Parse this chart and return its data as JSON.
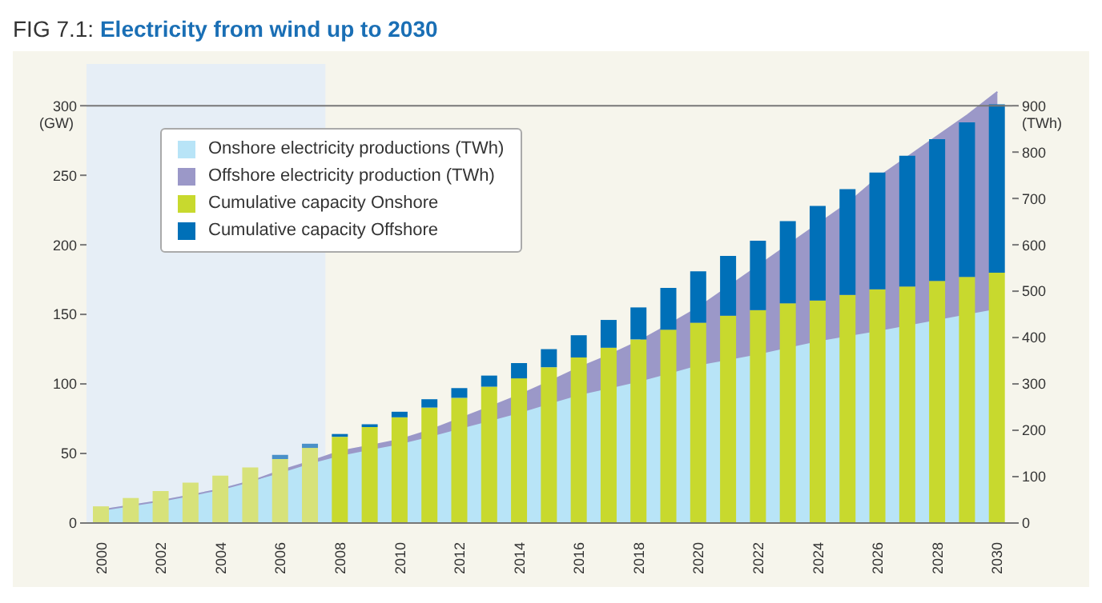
{
  "chart_data": {
    "type": "bar",
    "title": "FIG 7.1: Electricity from wind up to 2030",
    "ylabel": "(GW)",
    "y2label": "(TWh)",
    "categories": [
      "2000",
      null,
      "2002",
      null,
      "2004",
      null,
      "2006",
      null,
      "2008",
      null,
      "2010",
      null,
      "2012",
      null,
      "2014",
      null,
      "2016",
      null,
      "2018",
      null,
      "2020",
      null,
      "2022",
      null,
      "2024",
      null,
      "2026",
      null,
      "2028",
      null,
      "2030"
    ],
    "stacked": true,
    "series": [
      {
        "name": "Onshore electricity productions (TWh)",
        "type": "area",
        "axis": "y2",
        "color": "#b8e4f7",
        "values": [
          28,
          38,
          48,
          60,
          73,
          90,
          108,
          128,
          145,
          158,
          170,
          186,
          203,
          220,
          237,
          257,
          276,
          290,
          305,
          322,
          340,
          352,
          364,
          378,
          392,
          403,
          414,
          426,
          438,
          450,
          462
        ]
      },
      {
        "name": "Offshore electricity production (TWh)",
        "type": "area",
        "axis": "y2",
        "color": "#9b98c8",
        "values": [
          0,
          0,
          0,
          0,
          0,
          0,
          5,
          5,
          10,
          9,
          10,
          14,
          22,
          30,
          39,
          48,
          59,
          72,
          87,
          106,
          125,
          158,
          191,
          222,
          253,
          287,
          331,
          364,
          397,
          430,
          468
        ]
      },
      {
        "name": "Cumulative capacity Onshore",
        "type": "bar",
        "color": "#c8d92e",
        "colors": [
          "#d7e27a",
          "#d7e27a",
          "#d7e27a",
          "#d7e27a",
          "#d7e27a",
          "#d7e27a",
          "#d7e27a",
          "#d7e27a",
          "#c8d92e",
          "#c8d92e",
          "#c8d92e",
          "#c8d92e",
          "#c8d92e",
          "#c8d92e",
          "#c8d92e",
          "#c8d92e",
          "#c8d92e",
          "#c8d92e",
          "#c8d92e",
          "#c8d92e",
          "#c8d92e",
          "#c8d92e",
          "#c8d92e",
          "#c8d92e",
          "#c8d92e",
          "#c8d92e",
          "#c8d92e",
          "#c8d92e",
          "#c8d92e",
          "#c8d92e",
          "#c8d92e"
        ],
        "values": [
          12,
          18,
          23,
          29,
          34,
          40,
          46,
          54,
          62,
          69,
          76,
          83,
          90,
          98,
          104,
          112,
          119,
          126,
          132,
          139,
          144,
          149,
          153,
          158,
          160,
          164,
          168,
          170,
          174,
          177,
          180
        ]
      },
      {
        "name": "Cumulative capacity Offshore",
        "type": "bar",
        "color": "#0070b8",
        "colors": [
          null,
          null,
          null,
          null,
          null,
          null,
          "#4a90c8",
          "#4a90c8",
          "#0070b8",
          "#0070b8",
          "#0070b8",
          "#0070b8",
          "#0070b8",
          "#0070b8",
          "#0070b8",
          "#0070b8",
          "#0070b8",
          "#0070b8",
          "#0070b8",
          "#0070b8",
          "#0070b8",
          "#0070b8",
          "#0070b8",
          "#0070b8",
          "#0070b8",
          "#0070b8",
          "#0070b8",
          "#0070b8",
          "#0070b8",
          "#0070b8",
          "#0070b8"
        ],
        "values": [
          null,
          null,
          null,
          null,
          null,
          null,
          3,
          3,
          2,
          2,
          4,
          6,
          7,
          8,
          11,
          13,
          16,
          20,
          23,
          30,
          37,
          43,
          50,
          59,
          68,
          76,
          84,
          94,
          102,
          111,
          121
        ]
      }
    ],
    "ylim": [
      0,
      330
    ],
    "yticks": [
      0,
      50,
      100,
      150,
      200,
      250,
      300
    ],
    "y2lim": [
      0,
      990
    ],
    "y2ticks": [
      0,
      100,
      200,
      300,
      400,
      500,
      600,
      700,
      800,
      900
    ],
    "ref_lines": [
      {
        "axis": "y",
        "value": 300,
        "color": "#777777"
      }
    ],
    "bands": [
      {
        "axis": "x",
        "from": "2000",
        "to": "2008",
        "color": "#e6eef6"
      }
    ],
    "legend": "top left"
  }
}
